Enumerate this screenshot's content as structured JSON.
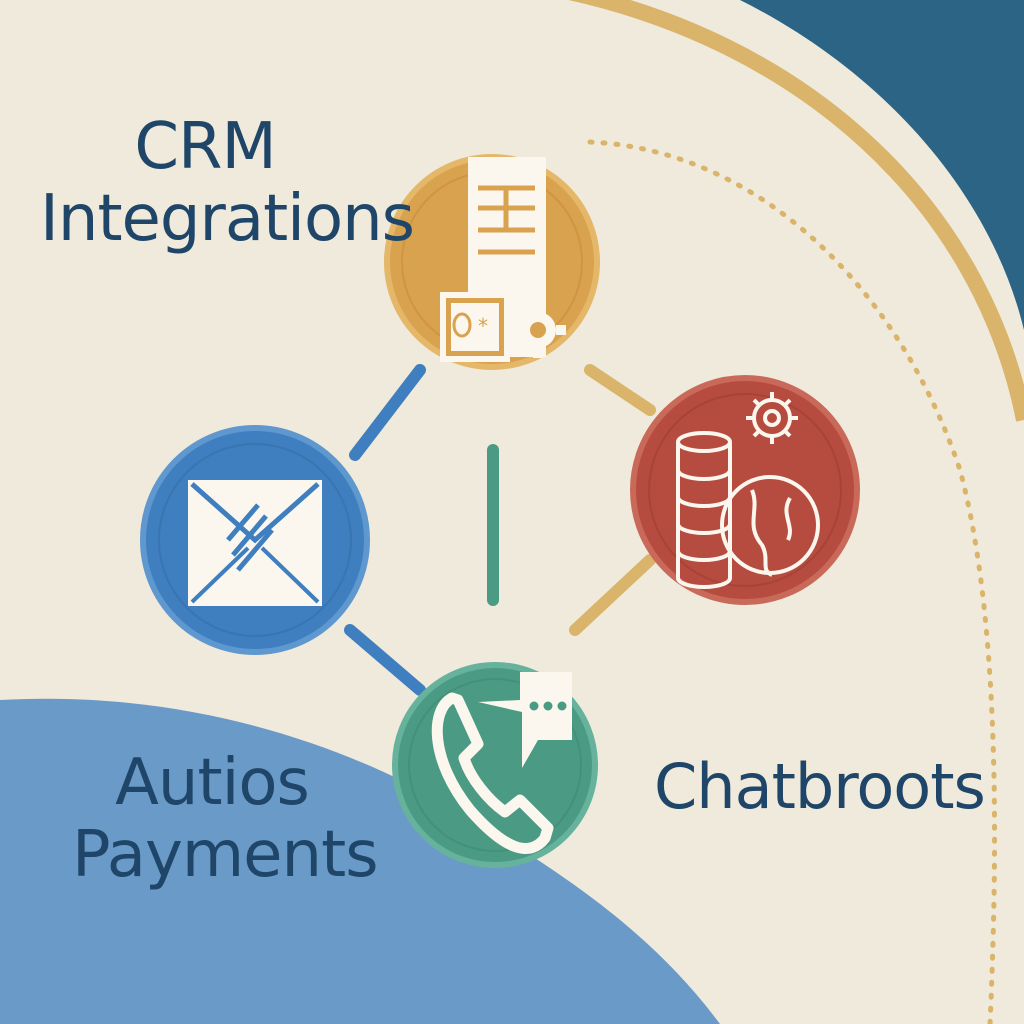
{
  "labels": {
    "crm_line1": "CRM",
    "crm_line2": "Integrations",
    "payments_line1": "Autios",
    "payments_line2": "Payments",
    "chatbots": "Chatbroots"
  },
  "nodes": [
    {
      "id": "crm",
      "icon": "document-money-gear-icon",
      "color": "#d9a24f"
    },
    {
      "id": "email",
      "icon": "envelope-icon",
      "color": "#3f7fbf"
    },
    {
      "id": "chat",
      "icon": "phone-chat-icon",
      "color": "#4b9b84"
    },
    {
      "id": "data",
      "icon": "database-globe-gear-icon",
      "color": "#b64c3f"
    }
  ],
  "colors": {
    "background": "#efeadb",
    "navy_corner": "#2c6486",
    "gold_arc": "#d9b46a",
    "blue_wave": "#6a9ac7",
    "text": "#1f4668"
  }
}
